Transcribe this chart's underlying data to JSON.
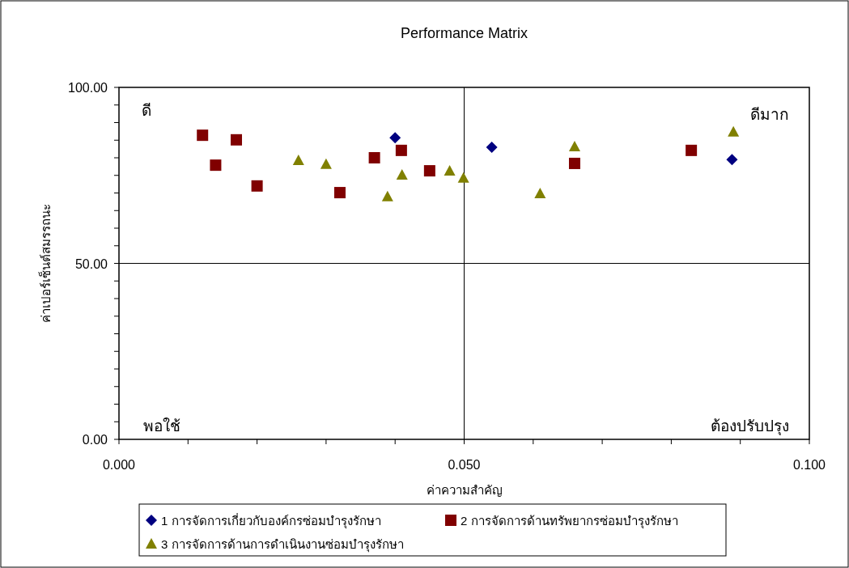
{
  "chart_data": {
    "type": "scatter",
    "title": "Performance Matrix",
    "xlabel": "ค่าความสำคัญ",
    "ylabel": "ค่าเปอร์เซ็นต์สมรรถนะ",
    "xlim": [
      0,
      0.1
    ],
    "ylim": [
      0,
      100
    ],
    "xticks": [
      {
        "value": 0,
        "label": "0.000"
      },
      {
        "value": 0.01,
        "label": null
      },
      {
        "value": 0.02,
        "label": null
      },
      {
        "value": 0.03,
        "label": null
      },
      {
        "value": 0.04,
        "label": null
      },
      {
        "value": 0.05,
        "label": "0.050"
      },
      {
        "value": 0.06,
        "label": null
      },
      {
        "value": 0.07,
        "label": null
      },
      {
        "value": 0.08,
        "label": null
      },
      {
        "value": 0.09,
        "label": null
      },
      {
        "value": 0.1,
        "label": "0.100"
      }
    ],
    "yticks": [
      {
        "value": 0,
        "label": "0.00"
      },
      {
        "value": 5,
        "label": null
      },
      {
        "value": 10,
        "label": null
      },
      {
        "value": 15,
        "label": null
      },
      {
        "value": 20,
        "label": null
      },
      {
        "value": 25,
        "label": null
      },
      {
        "value": 30,
        "label": null
      },
      {
        "value": 35,
        "label": null
      },
      {
        "value": 40,
        "label": null
      },
      {
        "value": 45,
        "label": null
      },
      {
        "value": 50,
        "label": "50.00"
      },
      {
        "value": 55,
        "label": null
      },
      {
        "value": 60,
        "label": null
      },
      {
        "value": 65,
        "label": null
      },
      {
        "value": 70,
        "label": null
      },
      {
        "value": 75,
        "label": null
      },
      {
        "value": 80,
        "label": null
      },
      {
        "value": 85,
        "label": null
      },
      {
        "value": 90,
        "label": null
      },
      {
        "value": 95,
        "label": null
      },
      {
        "value": 100,
        "label": "100.00"
      }
    ],
    "ref_lines": [
      {
        "axis": "x",
        "value": 0.05,
        "label": null
      },
      {
        "axis": "y",
        "value": 50,
        "label": null
      }
    ],
    "annotations": [
      "ดี",
      "ดีมาก",
      "พอใช้",
      "ต้องปรับปรุง"
    ],
    "legend": "bottom",
    "grid": false,
    "series": [
      {
        "name": "1  การจัดการเกี่ยวกับองค์กรซ่อมบำรุงรักษา",
        "color": "#000080",
        "marker": "diamond",
        "x": [
          0.04,
          0.054,
          0.0888
        ],
        "values": [
          85.7,
          83.0,
          79.5
        ]
      },
      {
        "name": "2  การจัดการด้านทรัพยากรซ่อมบำรุงรักษา",
        "color": "#800000",
        "marker": "square",
        "x": [
          0.0121,
          0.014,
          0.017,
          0.02,
          0.032,
          0.037,
          0.0409,
          0.045,
          0.066,
          0.0829
        ],
        "values": [
          86.4,
          77.9,
          85.1,
          72.0,
          70.1,
          80.0,
          82.1,
          76.3,
          78.4,
          82.1
        ]
      },
      {
        "name": "3  การจัดการด้านการดำเนินงานซ่อมบำรุงรักษา",
        "color": "#808000",
        "marker": "triangle",
        "x": [
          0.026,
          0.03,
          0.0389,
          0.041,
          0.0479,
          0.0499,
          0.061,
          0.066,
          0.089
        ],
        "values": [
          79.3,
          78.2,
          69.0,
          75.2,
          76.3,
          74.3,
          69.9,
          83.2,
          87.4
        ]
      }
    ]
  }
}
